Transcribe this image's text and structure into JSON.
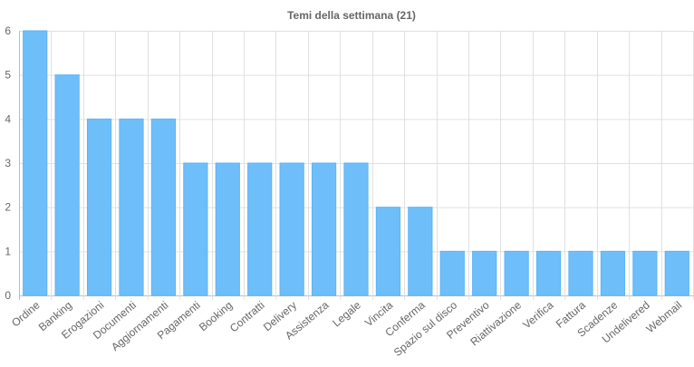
{
  "chart_data": {
    "type": "bar",
    "title": "Temi della settimana (21)",
    "categories": [
      "Ordine",
      "Banking",
      "Erogazioni",
      "Documenti",
      "Aggiornamenti",
      "Pagamenti",
      "Booking",
      "Contratti",
      "Delivery",
      "Assistenza",
      "Legale",
      "Vincita",
      "Conferma",
      "Spazio sul disco",
      "Preventivo",
      "Riattivazione",
      "Verifica",
      "Fattura",
      "Scadenze",
      "Undelivered",
      "Webmail"
    ],
    "values": [
      6,
      5,
      4,
      4,
      4,
      3,
      3,
      3,
      3,
      3,
      3,
      2,
      2,
      1,
      1,
      1,
      1,
      1,
      1,
      1,
      1
    ],
    "ylim": [
      0,
      6
    ],
    "yticks": [
      "0",
      "1",
      "2",
      "3",
      "4",
      "5",
      "6"
    ],
    "xlabel": "",
    "ylabel": "",
    "grid": true,
    "bar_color": "#6ebff9",
    "bar_border_color": "#5eb3f5"
  }
}
